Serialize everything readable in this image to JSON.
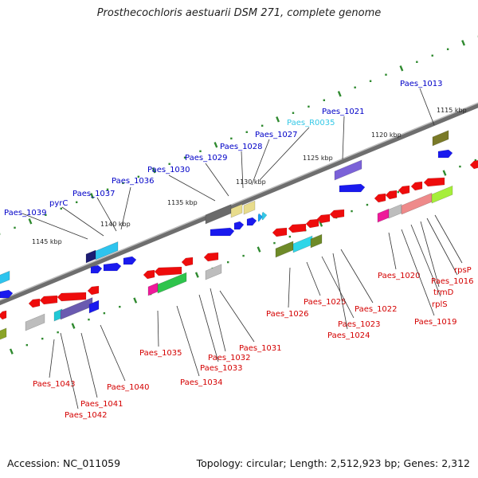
{
  "title": "Prosthecochloris aestuarii DSM 271, complete genome",
  "footer": {
    "accession": "Accession: NC_011059",
    "summary": "Topology: circular; Length: 2,512,923 bp; Genes: 2,312"
  },
  "colors": {
    "forward_label": "#0000c8",
    "reverse_label": "#d40000",
    "rna_label": "#33c8e6",
    "backbone": "#808080",
    "tick": "#2f8a2f"
  },
  "kbp_labels": [
    "1145 kbp",
    "1140 kbp",
    "1135 kbp",
    "1130 kbp",
    "1125 kbp",
    "1120 kbp",
    "1115 kbp"
  ],
  "forward_genes": [
    "Paes_1039",
    "pyrC",
    "Paes_1037",
    "Paes_1036",
    "Paes_1030",
    "Paes_1029",
    "Paes_1028",
    "Paes_1027",
    "Paes_R0035",
    "Paes_1021",
    "Paes_1013"
  ],
  "reverse_genes": [
    "Paes_1043",
    "Paes_1041",
    "Paes_1042",
    "Paes_1040",
    "Paes_1035",
    "Paes_1034",
    "Paes_1033",
    "Paes_1032",
    "Paes_1031",
    "Paes_1026",
    "Paes_1025",
    "Paes_1023",
    "Paes_1024",
    "Paes_1022",
    "Paes_1020",
    "Paes_1019",
    "rplS",
    "trmD",
    "Paes_1016",
    "rpsP"
  ]
}
